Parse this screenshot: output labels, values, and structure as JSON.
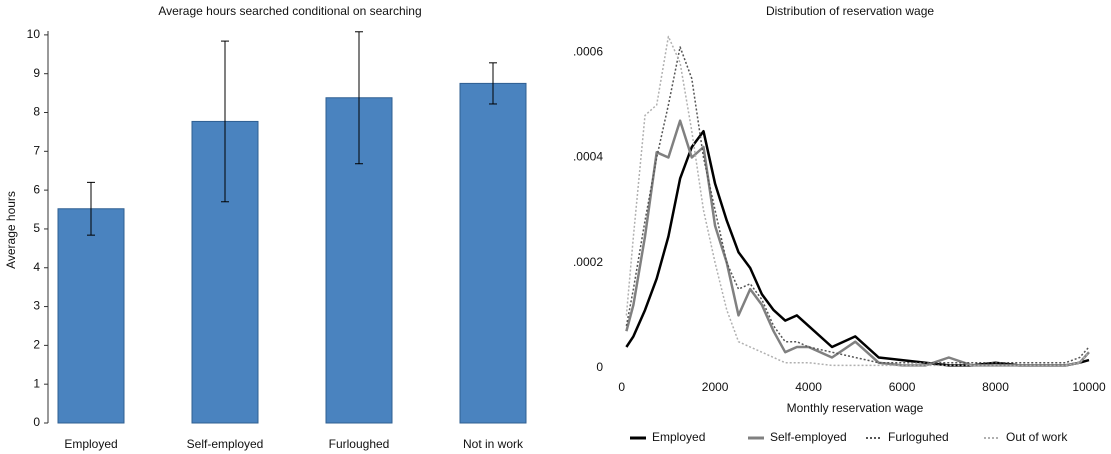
{
  "chart_data": [
    {
      "type": "bar",
      "title": "Average hours searched conditional on searching",
      "y_label": "Average hours",
      "categories": [
        "Employed",
        "Self-employed",
        "Furloughed",
        "Not in work"
      ],
      "values": [
        5.52,
        7.77,
        8.38,
        8.75
      ],
      "errors": [
        0.68,
        2.07,
        1.7,
        0.53
      ],
      "color": "#4a83bf",
      "ylim": [
        0,
        10.1
      ],
      "yticks": [
        0,
        1,
        2,
        3,
        4,
        5,
        6,
        7,
        8,
        9,
        10
      ]
    },
    {
      "type": "line",
      "title": "Distribution of reservation wage",
      "x_label": "Monthly reservation wage",
      "x": [
        100,
        250,
        500,
        750,
        1000,
        1250,
        1500,
        1750,
        2000,
        2250,
        2500,
        2750,
        3000,
        3250,
        3500,
        3750,
        4000,
        4500,
        5000,
        5500,
        6000,
        6500,
        7000,
        7500,
        8000,
        8500,
        9000,
        9500,
        9800,
        10000
      ],
      "series": [
        {
          "name": "Employed",
          "color": "#000000",
          "line_style": "solid",
          "line_width": 2.5,
          "values": [
            4e-05,
            6e-05,
            0.00011,
            0.00017,
            0.00025,
            0.00036,
            0.00042,
            0.00045,
            0.00035,
            0.00028,
            0.00022,
            0.00019,
            0.00014,
            0.00011,
            9e-05,
            0.0001,
            8e-05,
            4e-05,
            6e-05,
            2e-05,
            1.5e-05,
            1e-05,
            5e-06,
            5e-06,
            1e-05,
            5e-06,
            5e-06,
            5e-06,
            1e-05,
            1.5e-05
          ]
        },
        {
          "name": "Self-employed",
          "color": "#808080",
          "line_style": "solid",
          "line_width": 2.5,
          "values": [
            7e-05,
            0.00012,
            0.00025,
            0.00041,
            0.0004,
            0.00047,
            0.0004,
            0.00042,
            0.00027,
            0.0002,
            0.0001,
            0.00015,
            0.00012,
            7e-05,
            3e-05,
            4e-05,
            4e-05,
            2e-05,
            5e-05,
            1e-05,
            5e-06,
            5e-06,
            2e-05,
            5e-06,
            5e-06,
            5e-06,
            5e-06,
            5e-06,
            1e-05,
            3e-05
          ]
        },
        {
          "name": "Furloguhed",
          "color": "#555555",
          "line_style": "dotted",
          "line_width": 1.5,
          "values": [
            8e-05,
            0.00015,
            0.00028,
            0.0004,
            0.0005,
            0.00061,
            0.00055,
            0.0004,
            0.0003,
            0.0002,
            0.00015,
            0.00016,
            0.00013,
            8e-05,
            5e-05,
            5e-05,
            4e-05,
            3e-05,
            2e-05,
            1e-05,
            1e-05,
            1e-05,
            1e-05,
            1e-05,
            1e-05,
            1e-05,
            1e-05,
            1e-05,
            2e-05,
            4e-05
          ]
        },
        {
          "name": "Out of work",
          "color": "#b0b0b0",
          "line_style": "dotted",
          "line_width": 1.5,
          "values": [
            0.0001,
            0.00025,
            0.00048,
            0.0005,
            0.00063,
            0.00058,
            0.00045,
            0.0003,
            0.0002,
            0.00011,
            5e-05,
            4e-05,
            3e-05,
            2e-05,
            1e-05,
            1e-05,
            1e-05,
            5e-06,
            5e-06,
            5e-06,
            5e-06,
            5e-06,
            5e-06,
            5e-06,
            5e-06,
            5e-06,
            5e-06,
            5e-06,
            1e-05,
            3e-05
          ]
        }
      ],
      "xlim": [
        -250,
        10000
      ],
      "xticks": [
        0,
        2000,
        4000,
        6000,
        8000,
        10000
      ],
      "ylim": [
        0,
        0.00065
      ],
      "yticks": [
        0,
        {
          "value": 0.0002,
          "label": ".0002"
        },
        {
          "value": 0.0004,
          "label": ".0004"
        },
        {
          "value": 0.0006,
          "label": ".0006"
        }
      ],
      "legend": "bottom"
    }
  ]
}
